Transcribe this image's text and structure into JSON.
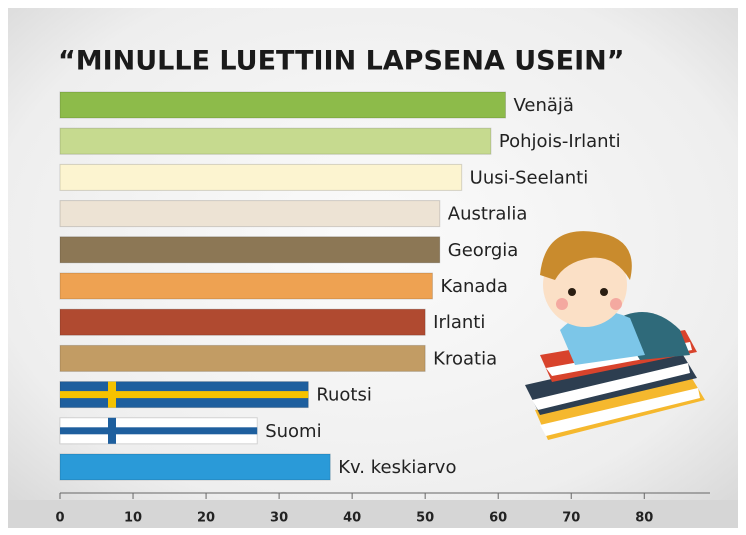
{
  "chart_data": {
    "type": "bar",
    "orientation": "horizontal",
    "title": "“MINULLE LUETTIIN LAPSENA USEIN”",
    "categories": [
      "Venäjä",
      "Pohjois-Irlanti",
      "Uusi-Seelanti",
      "Australia",
      "Georgia",
      "Kanada",
      "Irlanti",
      "Kroatia",
      "Ruotsi",
      "Suomi",
      "Kv. keskiarvo"
    ],
    "values": [
      61,
      59,
      55,
      52,
      52,
      51,
      50,
      50,
      34,
      27,
      37
    ],
    "colors": [
      "#8dbb4a",
      "#c6da8f",
      "#fcf4d0",
      "#ede3d4",
      "#8c7755",
      "#eea252",
      "#b04a30",
      "#c29c64",
      "#1e5f9e",
      "#ffffff",
      "#2a9ad8"
    ],
    "cross_colors": [
      null,
      null,
      null,
      null,
      null,
      null,
      null,
      null,
      "#f5c200",
      "#1e5f9e",
      null
    ],
    "xlim": [
      0,
      89
    ],
    "xticks": [
      0,
      10,
      20,
      30,
      40,
      50,
      60,
      70,
      80
    ],
    "grid": false
  }
}
